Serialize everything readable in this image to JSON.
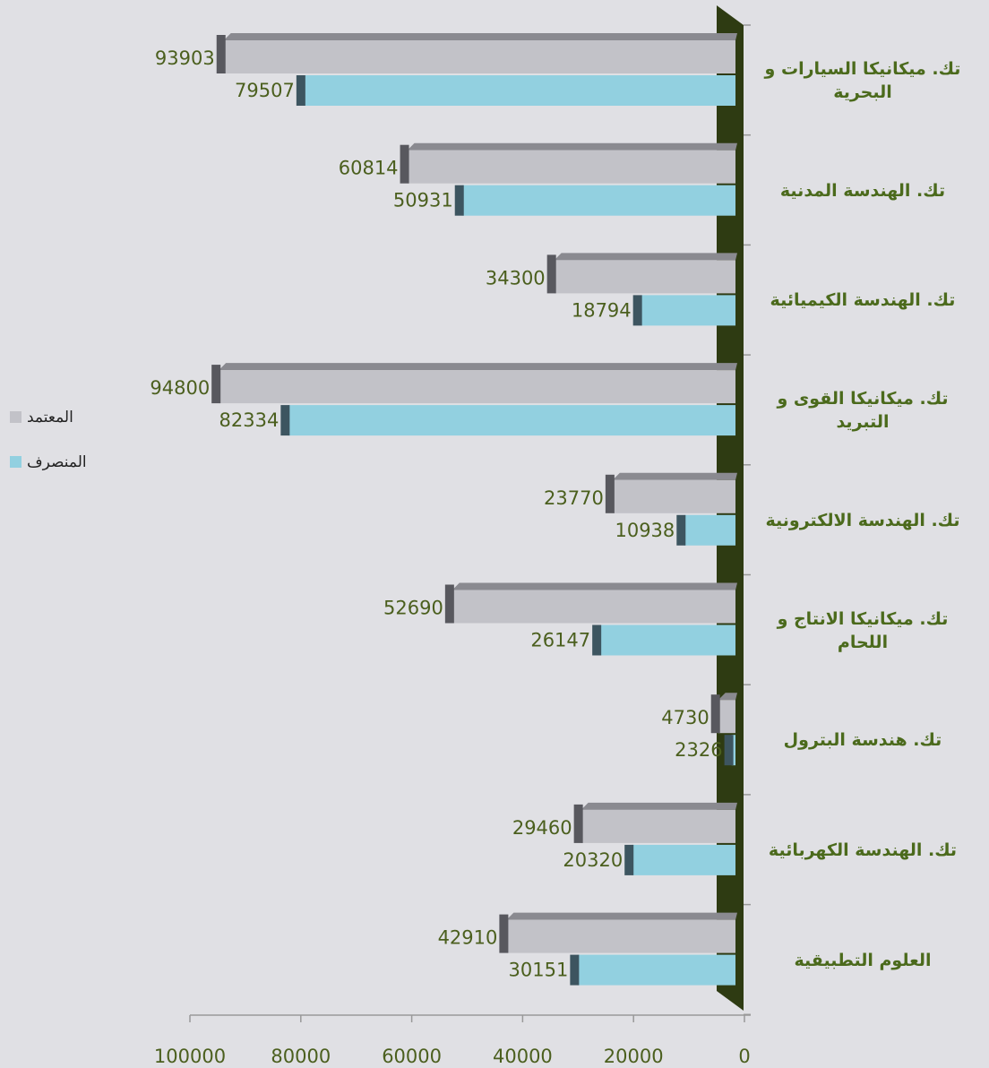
{
  "chart_data": {
    "type": "barh",
    "categories": [
      "تك. ميكانيكا السيارات و البحرية",
      "تك. الهندسة المدنية",
      "تك. الهندسة الكيميائية",
      "تك. ميكانيكا القوى و التبريد",
      "تك. الهندسة الالكترونية",
      "تك. ميكانيكا الانتاج و اللحام",
      "تك. هندسة البترول",
      "تك. الهندسة الكهربائية",
      "العلوم التطبيقية"
    ],
    "series": [
      {
        "name": "المعتمد",
        "color": "#c2c2c8",
        "values": [
          93903,
          60814,
          34300,
          94800,
          23770,
          52690,
          4730,
          29460,
          42910
        ]
      },
      {
        "name": "المنصرف",
        "color": "#92d0e0",
        "values": [
          79507,
          50931,
          18794,
          82334,
          10938,
          26147,
          2326,
          20320,
          30151
        ]
      }
    ],
    "xlim": [
      0,
      100000
    ],
    "xticks": [
      0,
      20000,
      40000,
      60000,
      80000,
      100000
    ],
    "x_inverted": true,
    "legend": "left"
  }
}
